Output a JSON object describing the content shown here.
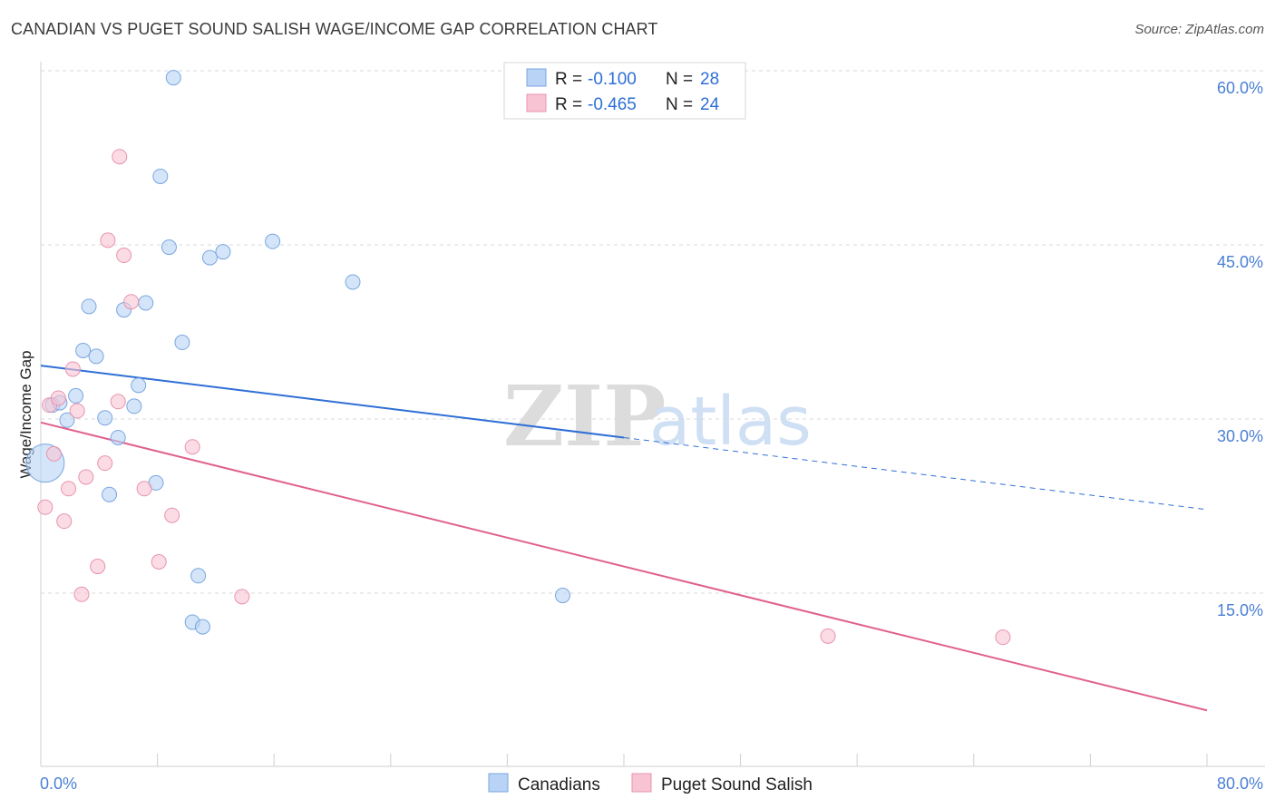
{
  "header": {
    "title": "CANADIAN VS PUGET SOUND SALISH WAGE/INCOME GAP CORRELATION CHART",
    "source": "Source: ZipAtlas.com"
  },
  "watermark": {
    "zip": "ZIP",
    "atlas": "atlas"
  },
  "legend_box": {
    "rows": [
      {
        "r_label": "R = ",
        "r_value": "-0.100",
        "n_label": "N = ",
        "n_value": "28"
      },
      {
        "r_label": "R = ",
        "r_value": "-0.465",
        "n_label": "N = ",
        "n_value": "24"
      }
    ]
  },
  "bottom_legend": {
    "items": [
      "Canadians",
      "Puget Sound Salish"
    ]
  },
  "chart_data": {
    "type": "scatter",
    "title": "CANADIAN VS PUGET SOUND SALISH WAGE/INCOME GAP CORRELATION CHART",
    "xlabel": "",
    "ylabel": "Wage/Income Gap",
    "xlim": [
      0,
      80
    ],
    "ylim": [
      0,
      62
    ],
    "x_tick_labels": [
      "0.0%",
      "80.0%"
    ],
    "y_ticks": [
      15,
      30,
      45,
      60
    ],
    "y_tick_labels": [
      "15.0%",
      "30.0%",
      "45.0%",
      "60.0%"
    ],
    "grid": true,
    "colors": {
      "canadians_fill": "#b8d3f5",
      "canadians_stroke": "#7aa6e0",
      "canadians_line": "#2f6fd6",
      "salish_fill": "#f8c4d3",
      "salish_stroke": "#e893ad",
      "salish_line": "#e0608d",
      "grid": "#d8d8d8",
      "axis_text": "#4a7fd4"
    },
    "series": [
      {
        "name": "Canadians",
        "r": -0.1,
        "n": 28,
        "trend": {
          "x0": 0,
          "y0": 34.6,
          "x1": 40,
          "y1": 28.4,
          "dash_to_x": 80,
          "dash_to_y": 22.2
        },
        "points": [
          [
            0.3,
            26.2
          ],
          [
            0.8,
            31.2
          ],
          [
            1.3,
            31.4
          ],
          [
            1.8,
            29.9
          ],
          [
            2.4,
            32.0
          ],
          [
            2.9,
            35.9
          ],
          [
            3.3,
            39.7
          ],
          [
            3.8,
            35.4
          ],
          [
            4.4,
            30.1
          ],
          [
            4.7,
            23.5
          ],
          [
            5.3,
            28.4
          ],
          [
            5.7,
            39.4
          ],
          [
            6.4,
            31.1
          ],
          [
            6.7,
            32.9
          ],
          [
            7.2,
            40.0
          ],
          [
            7.9,
            24.5
          ],
          [
            8.2,
            50.9
          ],
          [
            8.8,
            44.8
          ],
          [
            9.1,
            59.4
          ],
          [
            9.7,
            36.6
          ],
          [
            10.4,
            12.5
          ],
          [
            10.8,
            16.5
          ],
          [
            11.1,
            12.1
          ],
          [
            11.6,
            43.9
          ],
          [
            12.5,
            44.4
          ],
          [
            15.9,
            45.3
          ],
          [
            21.4,
            41.8
          ],
          [
            35.8,
            14.8
          ]
        ]
      },
      {
        "name": "Puget Sound Salish",
        "r": -0.465,
        "n": 24,
        "trend": {
          "x0": 0,
          "y0": 29.7,
          "x1": 80,
          "y1": 4.9
        },
        "points": [
          [
            0.3,
            22.4
          ],
          [
            0.6,
            31.2
          ],
          [
            0.9,
            27.0
          ],
          [
            1.2,
            31.8
          ],
          [
            1.6,
            21.2
          ],
          [
            1.9,
            24.0
          ],
          [
            2.2,
            34.3
          ],
          [
            2.5,
            30.7
          ],
          [
            2.8,
            14.9
          ],
          [
            3.1,
            25.0
          ],
          [
            3.9,
            17.3
          ],
          [
            4.6,
            45.4
          ],
          [
            4.4,
            26.2
          ],
          [
            5.3,
            31.5
          ],
          [
            5.4,
            52.6
          ],
          [
            5.7,
            44.1
          ],
          [
            6.2,
            40.1
          ],
          [
            7.1,
            24.0
          ],
          [
            8.1,
            17.7
          ],
          [
            9.0,
            21.7
          ],
          [
            10.4,
            27.6
          ],
          [
            13.8,
            14.7
          ],
          [
            54.0,
            11.3
          ],
          [
            66.0,
            11.2
          ]
        ]
      }
    ]
  }
}
